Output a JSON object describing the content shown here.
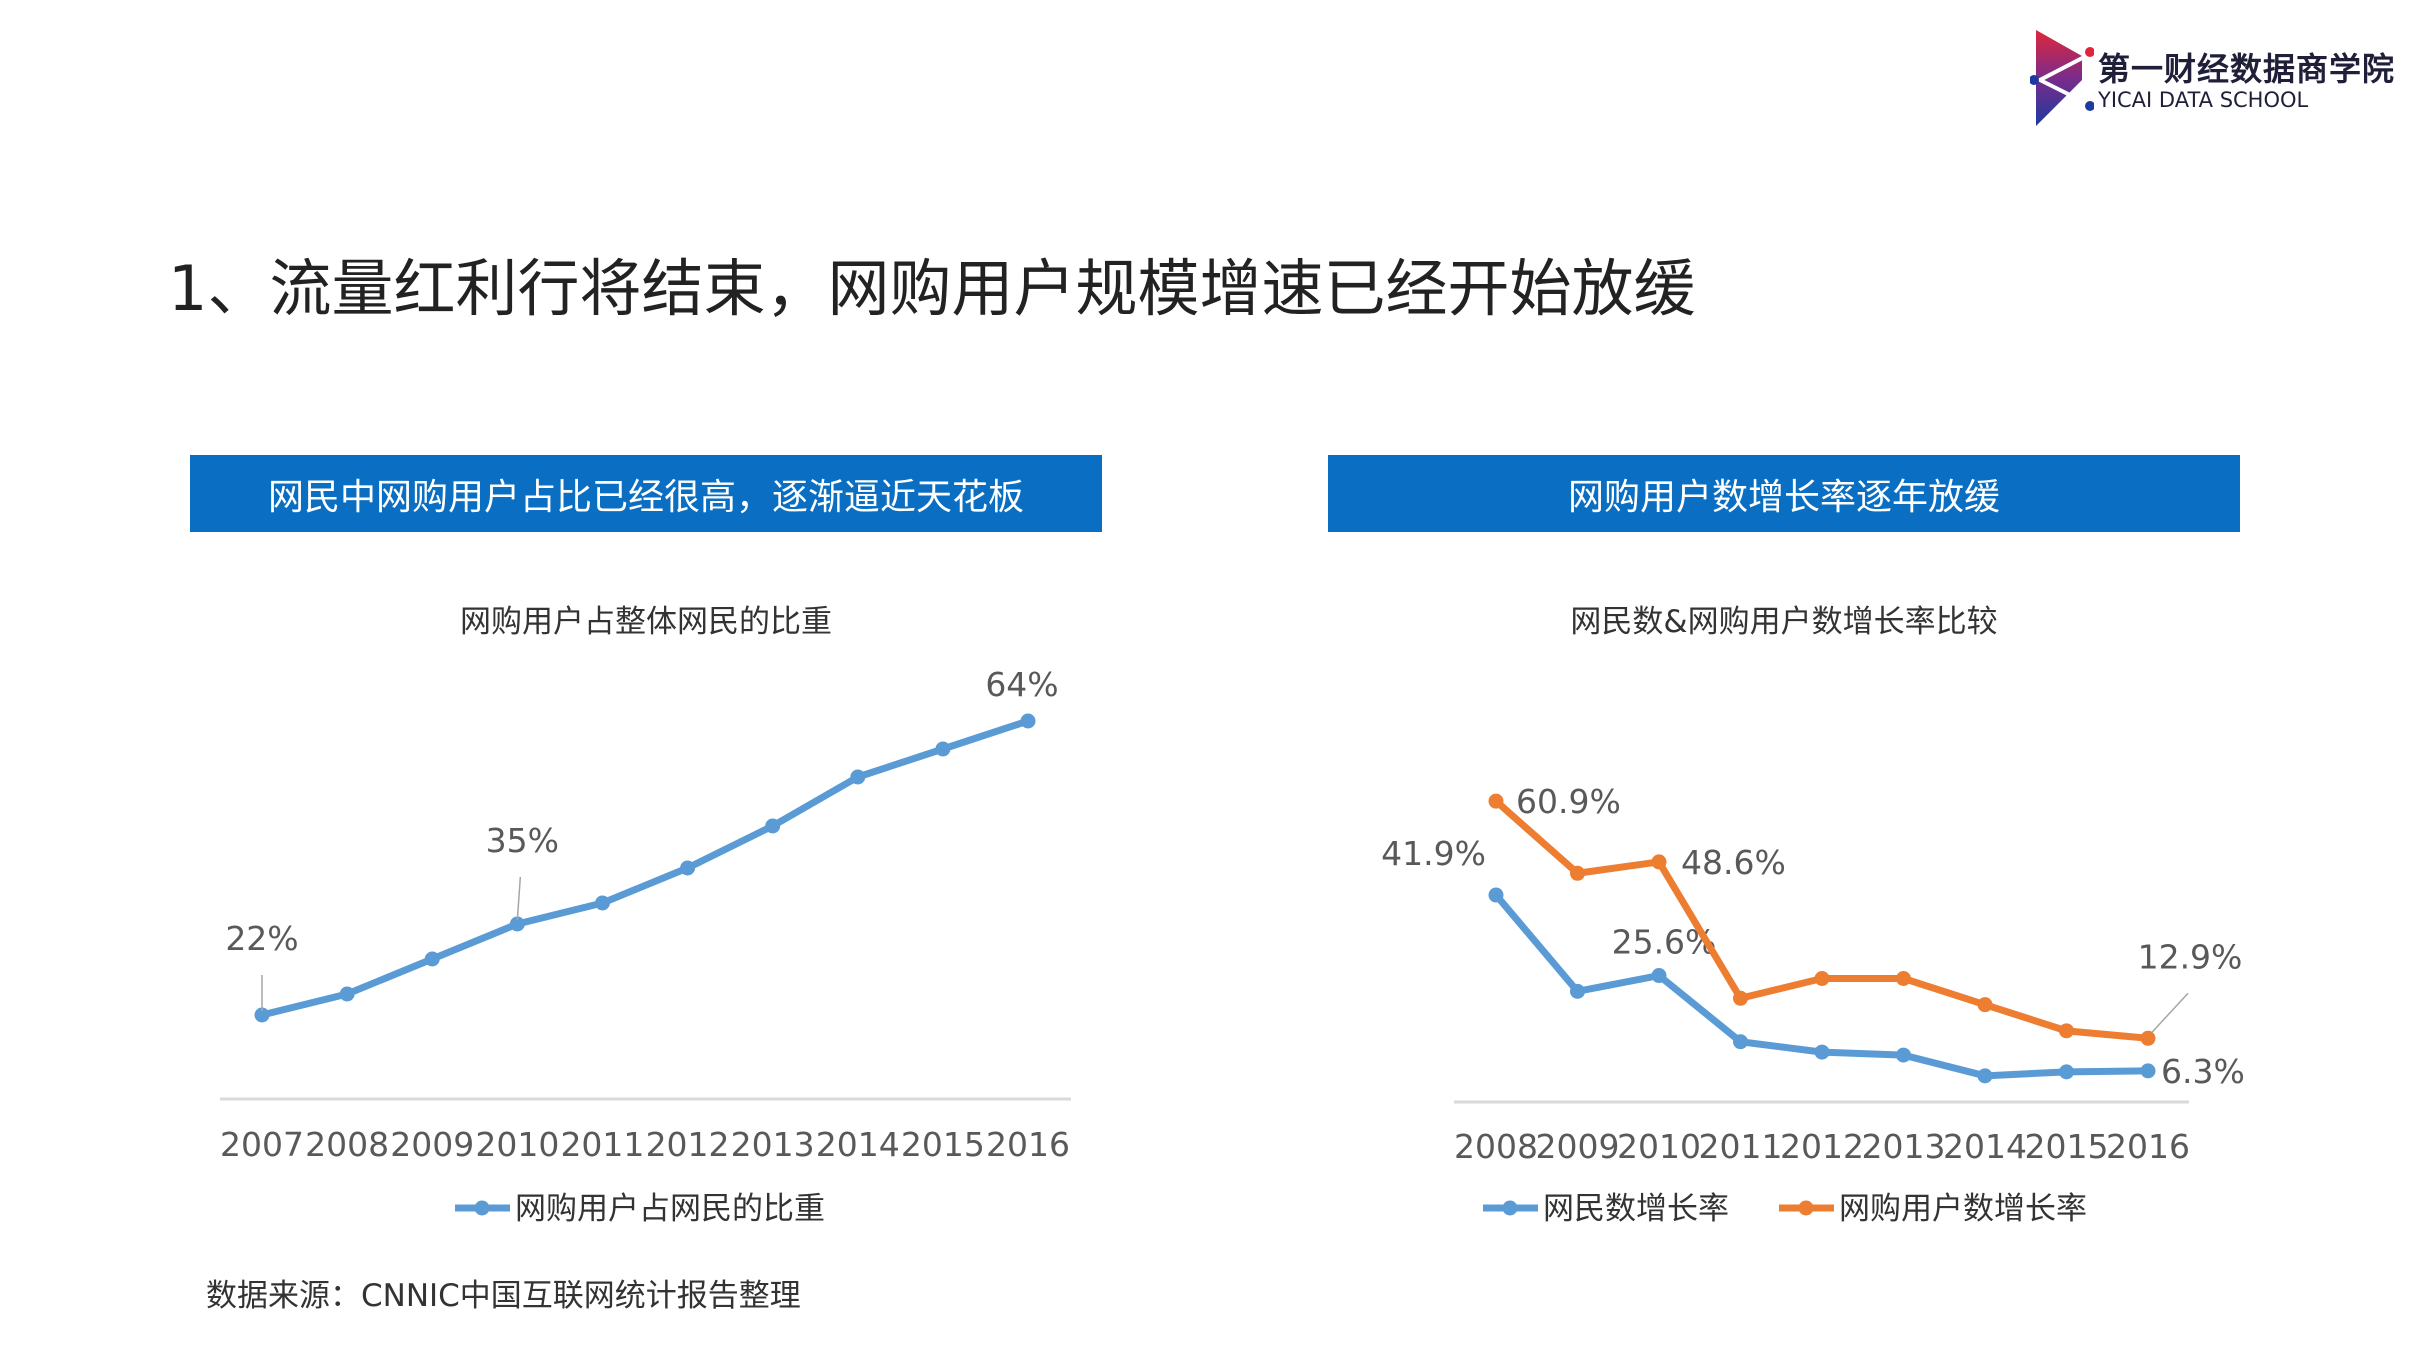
{
  "logo": {
    "name_cn": "第一财经数据商学院",
    "name_en": "YICAI DATA SCHOOL"
  },
  "title": "1、流量红利行将结束，网购用户规模增速已经开始放缓",
  "banners": [
    "网民中网购用户占比已经很高，逐渐逼近天花板",
    "网购用户数增长率逐年放缓"
  ],
  "source": "数据来源：CNNIC中国互联网统计报告整理",
  "colors": {
    "banner": "#0a6fc2",
    "blue_series": "#5b9bd5",
    "orange_series": "#ed7d31"
  },
  "chart_data": [
    {
      "type": "line",
      "title": "网购用户占整体网民的比重",
      "categories": [
        "2007",
        "2008",
        "2009",
        "2010",
        "2011",
        "2012",
        "2013",
        "2014",
        "2015",
        "2016"
      ],
      "series": [
        {
          "name": "网购用户占网民的比重",
          "color": "#5b9bd5",
          "values": [
            22,
            25,
            30,
            35,
            38,
            43,
            49,
            56,
            60,
            64
          ],
          "data_labels": {
            "0": "22%",
            "3": "35%",
            "9": "64%"
          }
        }
      ],
      "ylim": [
        10,
        70
      ],
      "grid": false,
      "legend": "bottom"
    },
    {
      "type": "line",
      "title": "网民数&网购用户数增长率比较",
      "categories": [
        "2008",
        "2009",
        "2010",
        "2011",
        "2012",
        "2013",
        "2014",
        "2015",
        "2016"
      ],
      "series": [
        {
          "name": "网民数增长率",
          "color": "#5b9bd5",
          "values": [
            41.9,
            22.4,
            25.6,
            12.2,
            10.1,
            9.5,
            5.3,
            6.1,
            6.3
          ],
          "data_labels": {
            "0": "41.9%",
            "2": "25.6%",
            "8": "6.3%"
          }
        },
        {
          "name": "网购用户数增长率",
          "color": "#ed7d31",
          "values": [
            60.9,
            46.3,
            48.6,
            21.0,
            25.0,
            25.0,
            19.7,
            14.4,
            12.9
          ],
          "data_labels": {
            "0": "60.9%",
            "2": "48.6%",
            "8": "12.9%"
          }
        }
      ],
      "ylim": [
        0,
        70
      ],
      "grid": false,
      "legend": "bottom"
    }
  ]
}
